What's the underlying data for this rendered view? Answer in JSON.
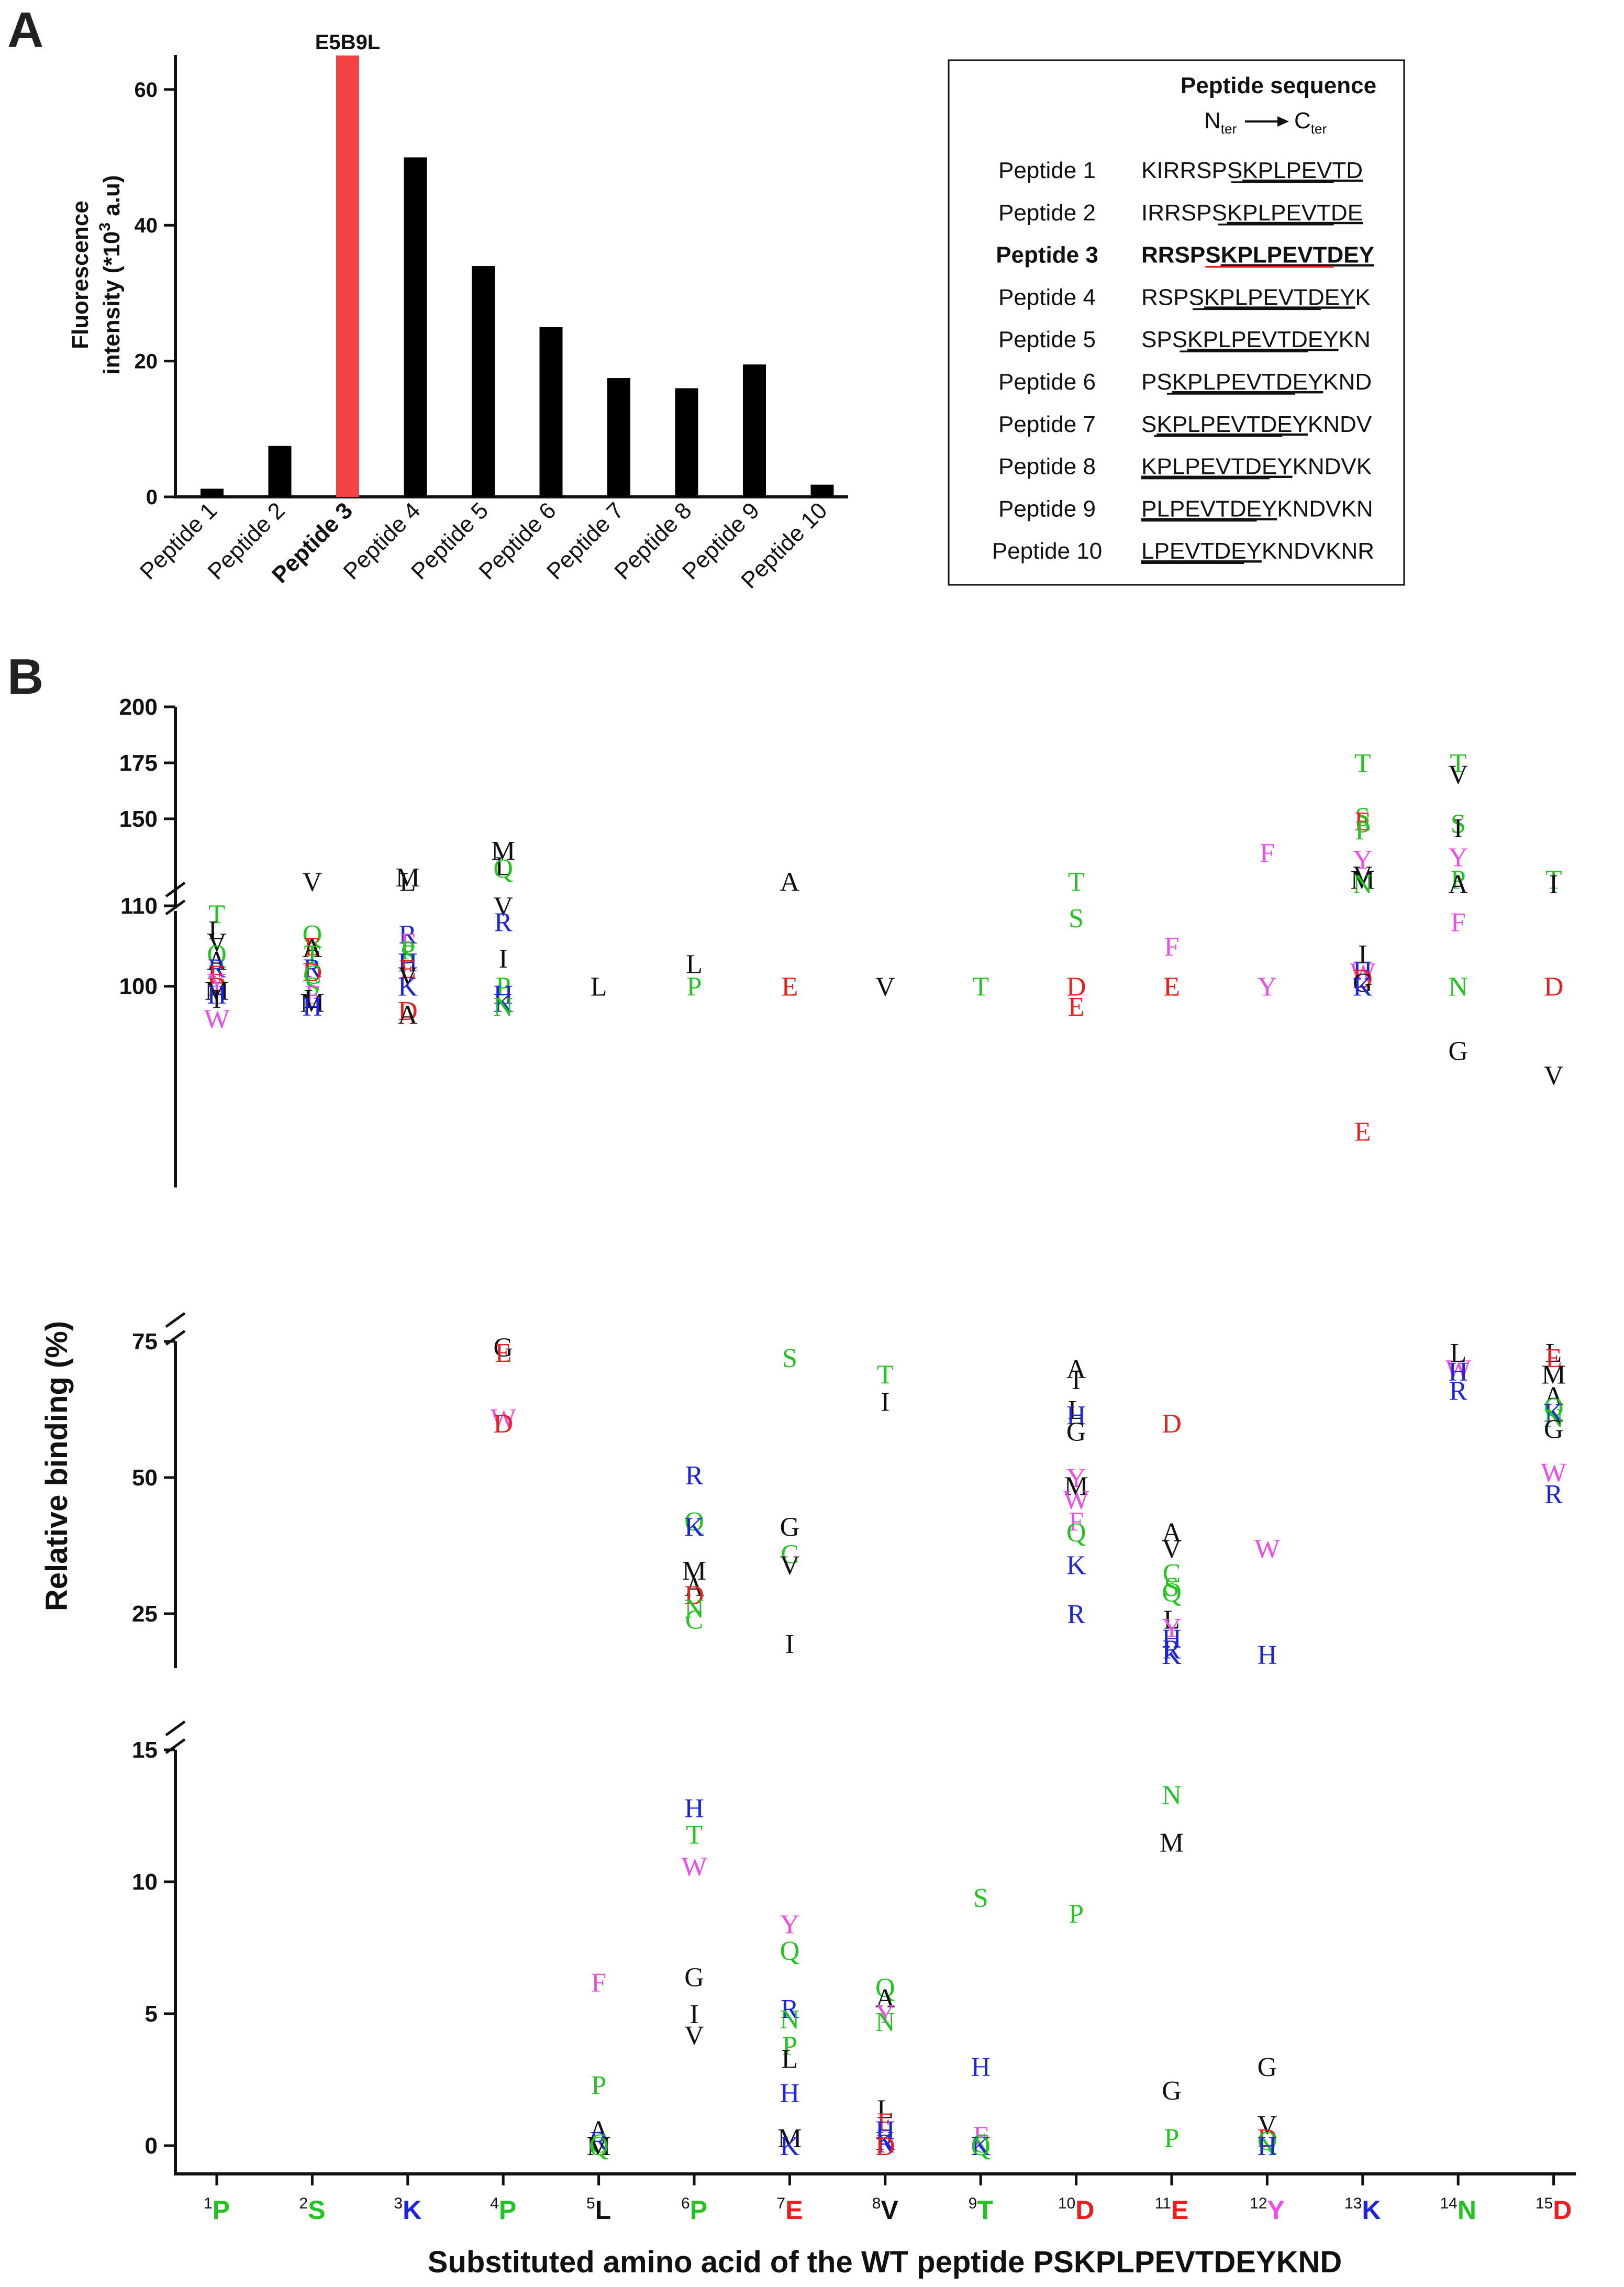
{
  "figure": {
    "panel_a_letter": "A",
    "panel_b_letter": "B"
  },
  "colors": {
    "green": "#22c41f",
    "blue": "#1c24e0",
    "red": "#ee1c1c",
    "magenta": "#ee4ce8",
    "black": "#111111",
    "highlight": "#f24444"
  },
  "chart_data": [
    {
      "type": "bar",
      "title": "",
      "xlabel": "",
      "ylabel": "Fluorescence intensity (*10³ a.u)",
      "ylabel_line1": "Fluorescence",
      "ylabel_line2": "intensity (*10",
      "ylabel_sup": "3",
      "ylabel_line2_end": " a.u)",
      "ylim": [
        0,
        65
      ],
      "yticks": [
        "0",
        "20",
        "40",
        "60"
      ],
      "ytick_values": [
        0,
        20,
        40,
        60
      ],
      "categories": [
        "Peptide 1",
        "Peptide 2",
        "Peptide 3",
        "Peptide 4",
        "Peptide 5",
        "Peptide 6",
        "Peptide 7",
        "Peptide 8",
        "Peptide 9",
        "Peptide 10"
      ],
      "values": [
        1.2,
        7.5,
        65,
        50,
        34,
        25,
        17.5,
        16,
        19.5,
        1.8
      ],
      "highlight_index": 2,
      "annotation": "E5B9L"
    },
    {
      "type": "table",
      "title": "Peptide sequence",
      "direction_start": "N",
      "direction_start_sub": "ter",
      "direction_end": "C",
      "direction_end_sub": "ter",
      "rows": [
        {
          "label": "Peptide 1",
          "pre": "KIRRSPS",
          "under": "KPLPEVTD",
          "post": "",
          "highlight": false
        },
        {
          "label": "Peptide 2",
          "pre": "IRRSPS",
          "under": "KPLPEVTDE",
          "post": "",
          "highlight": false
        },
        {
          "label": "Peptide 3",
          "pre": "RRSPS",
          "under": "KPLPEVTDEY",
          "post": "",
          "highlight": true
        },
        {
          "label": "Peptide 4",
          "pre": "RSPS",
          "under": "KPLPEVTDEY",
          "post": "K",
          "highlight": false
        },
        {
          "label": "Peptide 5",
          "pre": "SPS",
          "under": "KPLPEVTDEY",
          "post": "KN",
          "highlight": false
        },
        {
          "label": "Peptide 6",
          "pre": "PS",
          "under": "KPLPEVTDEY",
          "post": "KND",
          "highlight": false
        },
        {
          "label": "Peptide 7",
          "pre": "S",
          "under": "KPLPEVTDEY",
          "post": "KNDV",
          "highlight": false
        },
        {
          "label": "Peptide 8",
          "pre": "",
          "under": "KPLPEVTDEY",
          "post": "KNDVK",
          "highlight": false
        },
        {
          "label": "Peptide 9",
          "pre": "",
          "under": "PLPEVTDEY",
          "post": "KNDVKN",
          "highlight": false
        },
        {
          "label": "Peptide 10",
          "pre": "",
          "under": "LPEVTDEY",
          "post": "KNDVKNR",
          "highlight": false
        }
      ]
    },
    {
      "type": "scatter",
      "title": "",
      "ylabel": "Relative binding (%)",
      "xlabel": "Substituted amino acid of the WT peptide PSKPLPEVTDEYKND",
      "y_segments": [
        {
          "range": [
            0,
            15
          ],
          "ticks": [
            "0",
            "5",
            "10",
            "15"
          ],
          "values": [
            0,
            5,
            10,
            15
          ]
        },
        {
          "range": [
            15,
            75
          ],
          "ticks": [
            "25",
            "50",
            "75"
          ],
          "values": [
            25,
            50,
            75
          ]
        },
        {
          "range": [
            75,
            110
          ],
          "ticks": [
            "100",
            "110"
          ],
          "values": [
            100,
            110
          ]
        },
        {
          "range": [
            110,
            200
          ],
          "ticks": [
            "150",
            "175",
            "200"
          ],
          "values": [
            150,
            175,
            200
          ]
        }
      ],
      "positions": [
        {
          "num": "1",
          "aa": "P",
          "color": "green"
        },
        {
          "num": "2",
          "aa": "S",
          "color": "green"
        },
        {
          "num": "3",
          "aa": "K",
          "color": "blue"
        },
        {
          "num": "4",
          "aa": "P",
          "color": "green"
        },
        {
          "num": "5",
          "aa": "L",
          "color": "black"
        },
        {
          "num": "6",
          "aa": "P",
          "color": "green"
        },
        {
          "num": "7",
          "aa": "E",
          "color": "red"
        },
        {
          "num": "8",
          "aa": "V",
          "color": "black"
        },
        {
          "num": "9",
          "aa": "T",
          "color": "green"
        },
        {
          "num": "10",
          "aa": "D",
          "color": "red"
        },
        {
          "num": "11",
          "aa": "E",
          "color": "red"
        },
        {
          "num": "12",
          "aa": "Y",
          "color": "magenta"
        },
        {
          "num": "13",
          "aa": "K",
          "color": "blue"
        },
        {
          "num": "14",
          "aa": "N",
          "color": "green"
        },
        {
          "num": "15",
          "aa": "D",
          "color": "red"
        }
      ],
      "points": [
        [
          1,
          "T",
          109
        ],
        [
          1,
          "L",
          107
        ],
        [
          1,
          "V",
          105.5
        ],
        [
          1,
          "Q",
          104
        ],
        [
          1,
          "A",
          103.2
        ],
        [
          1,
          "R",
          102.3
        ],
        [
          1,
          "E",
          101.5
        ],
        [
          1,
          "Y",
          100.5
        ],
        [
          1,
          "D",
          100
        ],
        [
          1,
          "M",
          99.5
        ],
        [
          1,
          "H",
          99
        ],
        [
          1,
          "I",
          98.5
        ],
        [
          1,
          "W",
          96
        ],
        [
          2,
          "V",
          122
        ],
        [
          2,
          "Q",
          106.5
        ],
        [
          2,
          "E",
          105
        ],
        [
          2,
          "A",
          104.8
        ],
        [
          2,
          "T",
          104
        ],
        [
          2,
          "R",
          102.3
        ],
        [
          2,
          "D",
          101.8
        ],
        [
          2,
          "C",
          101.5
        ],
        [
          2,
          "S",
          100
        ],
        [
          2,
          "F",
          99
        ],
        [
          2,
          "L",
          98.5
        ],
        [
          2,
          "M",
          98
        ],
        [
          2,
          "H",
          97.5
        ],
        [
          3,
          "M",
          124
        ],
        [
          3,
          "L",
          122
        ],
        [
          3,
          "R",
          106.5
        ],
        [
          3,
          "F",
          105.5
        ],
        [
          3,
          "P",
          104.5
        ],
        [
          3,
          "S",
          104
        ],
        [
          3,
          "H",
          103
        ],
        [
          3,
          "E",
          102.2
        ],
        [
          3,
          "V",
          101.3
        ],
        [
          3,
          "K",
          100
        ],
        [
          3,
          "D",
          97
        ],
        [
          3,
          "A",
          96.5
        ],
        [
          4,
          "M",
          136
        ],
        [
          4,
          "L",
          129
        ],
        [
          4,
          "Q",
          128
        ],
        [
          4,
          "V",
          110
        ],
        [
          4,
          "R",
          108
        ],
        [
          4,
          "I",
          103.5
        ],
        [
          4,
          "P",
          100
        ],
        [
          4,
          "H",
          99
        ],
        [
          4,
          "K",
          98
        ],
        [
          4,
          "N",
          97.5
        ],
        [
          4,
          "G",
          74
        ],
        [
          4,
          "E",
          73
        ],
        [
          4,
          "W",
          61
        ],
        [
          4,
          "D",
          60
        ],
        [
          5,
          "L",
          100
        ],
        [
          5,
          "F",
          6.2
        ],
        [
          5,
          "P",
          2.3
        ],
        [
          5,
          "A",
          0.6
        ],
        [
          5,
          "R",
          0.2
        ],
        [
          5,
          "C",
          0.1
        ],
        [
          5,
          "M",
          0
        ],
        [
          5,
          "Q",
          0
        ],
        [
          6,
          "L",
          102.8
        ],
        [
          6,
          "P",
          100
        ],
        [
          6,
          "R",
          50.5
        ],
        [
          6,
          "Q",
          42
        ],
        [
          6,
          "K",
          41
        ],
        [
          6,
          "M",
          33
        ],
        [
          6,
          "A",
          30
        ],
        [
          6,
          "D",
          28.5
        ],
        [
          6,
          "N",
          26
        ],
        [
          6,
          "C",
          24
        ],
        [
          6,
          "H",
          12.8
        ],
        [
          6,
          "T",
          11.8
        ],
        [
          6,
          "W",
          10.6
        ],
        [
          6,
          "G",
          6.4
        ],
        [
          6,
          "I",
          5
        ],
        [
          6,
          "V",
          4.2
        ],
        [
          7,
          "A",
          122
        ],
        [
          7,
          "E",
          100
        ],
        [
          7,
          "S",
          72
        ],
        [
          7,
          "G",
          41
        ],
        [
          7,
          "C",
          36
        ],
        [
          7,
          "V",
          34
        ],
        [
          7,
          "I",
          19.5
        ],
        [
          7,
          "Y",
          8.4
        ],
        [
          7,
          "Q",
          7.4
        ],
        [
          7,
          "R",
          5.2
        ],
        [
          7,
          "N",
          4.8
        ],
        [
          7,
          "P",
          3.8
        ],
        [
          7,
          "L",
          3.3
        ],
        [
          7,
          "H",
          2
        ],
        [
          7,
          "M",
          0.3
        ],
        [
          7,
          "K",
          0
        ],
        [
          8,
          "V",
          100
        ],
        [
          8,
          "T",
          69
        ],
        [
          8,
          "I",
          64
        ],
        [
          8,
          "Q",
          6
        ],
        [
          8,
          "A",
          5.6
        ],
        [
          8,
          "Y",
          5
        ],
        [
          8,
          "N",
          4.7
        ],
        [
          8,
          "L",
          1.4
        ],
        [
          8,
          "E",
          0.9
        ],
        [
          8,
          "H",
          0.6
        ],
        [
          8,
          "K",
          0.2
        ],
        [
          8,
          "R",
          0.1
        ],
        [
          8,
          "D",
          0
        ],
        [
          9,
          "T",
          100
        ],
        [
          9,
          "S",
          9.4
        ],
        [
          9,
          "H",
          3
        ],
        [
          9,
          "F",
          0.4
        ],
        [
          9,
          "C",
          0.1
        ],
        [
          9,
          "N",
          0
        ],
        [
          9,
          "K",
          0
        ],
        [
          9,
          "Q",
          0
        ],
        [
          10,
          "T",
          122
        ],
        [
          10,
          "S",
          108.5
        ],
        [
          10,
          "D",
          100
        ],
        [
          10,
          "E",
          97.5
        ],
        [
          10,
          "A",
          70
        ],
        [
          10,
          "I",
          68
        ],
        [
          10,
          "L",
          62.5
        ],
        [
          10,
          "H",
          61.5
        ],
        [
          10,
          "G",
          58.5
        ],
        [
          10,
          "Y",
          50
        ],
        [
          10,
          "M",
          48.5
        ],
        [
          10,
          "W",
          46
        ],
        [
          10,
          "F",
          42
        ],
        [
          10,
          "Q",
          40
        ],
        [
          10,
          "K",
          34
        ],
        [
          10,
          "R",
          25
        ],
        [
          10,
          "P",
          8.8
        ],
        [
          11,
          "F",
          105
        ],
        [
          11,
          "E",
          100
        ],
        [
          11,
          "D",
          60
        ],
        [
          11,
          "A",
          40
        ],
        [
          11,
          "V",
          37
        ],
        [
          11,
          "C",
          32.5
        ],
        [
          11,
          "S",
          30
        ],
        [
          11,
          "Q",
          29
        ],
        [
          11,
          "L",
          24
        ],
        [
          11,
          "Y",
          22.5
        ],
        [
          11,
          "H",
          20.5
        ],
        [
          11,
          "R",
          18.5
        ],
        [
          11,
          "K",
          17.5
        ],
        [
          11,
          "N",
          13.3
        ],
        [
          11,
          "M",
          11.5
        ],
        [
          11,
          "G",
          2.1
        ],
        [
          11,
          "P",
          0.3
        ],
        [
          12,
          "F",
          135
        ],
        [
          12,
          "Y",
          100
        ],
        [
          12,
          "W",
          37
        ],
        [
          12,
          "H",
          17.5
        ],
        [
          12,
          "G",
          3
        ],
        [
          12,
          "V",
          0.8
        ],
        [
          12,
          "D",
          0.3
        ],
        [
          12,
          "Q",
          0.2
        ],
        [
          12,
          "N",
          0
        ],
        [
          12,
          "H",
          0
        ],
        [
          13,
          "T",
          175
        ],
        [
          13,
          "S",
          151
        ],
        [
          13,
          "E",
          149
        ],
        [
          13,
          "P",
          145
        ],
        [
          13,
          "Y",
          132
        ],
        [
          13,
          "V",
          125
        ],
        [
          13,
          "M",
          123
        ],
        [
          13,
          "N",
          121
        ],
        [
          13,
          "I",
          104
        ],
        [
          13,
          "H",
          102
        ],
        [
          13,
          "W",
          101.8
        ],
        [
          13,
          "D",
          101
        ],
        [
          13,
          "G",
          100.5
        ],
        [
          13,
          "K",
          100
        ],
        [
          13,
          "E",
          82
        ],
        [
          14,
          "T",
          175
        ],
        [
          14,
          "V",
          170
        ],
        [
          14,
          "S",
          148
        ],
        [
          14,
          "I",
          146
        ],
        [
          14,
          "Y",
          133
        ],
        [
          14,
          "P",
          123
        ],
        [
          14,
          "A",
          121
        ],
        [
          14,
          "F",
          108
        ],
        [
          14,
          "N",
          100
        ],
        [
          14,
          "G",
          92
        ],
        [
          14,
          "L",
          73
        ],
        [
          14,
          "W",
          70
        ],
        [
          14,
          "H",
          69.5
        ],
        [
          14,
          "R",
          66
        ],
        [
          15,
          "T",
          123
        ],
        [
          15,
          "I",
          121
        ],
        [
          15,
          "D",
          100
        ],
        [
          15,
          "V",
          89
        ],
        [
          15,
          "L",
          73
        ],
        [
          15,
          "E",
          72
        ],
        [
          15,
          "M",
          69
        ],
        [
          15,
          "A",
          65
        ],
        [
          15,
          "Q",
          63
        ],
        [
          15,
          "K",
          62
        ],
        [
          15,
          "N",
          61
        ],
        [
          15,
          "G",
          59
        ],
        [
          15,
          "W",
          51
        ],
        [
          15,
          "R",
          47
        ]
      ]
    }
  ]
}
